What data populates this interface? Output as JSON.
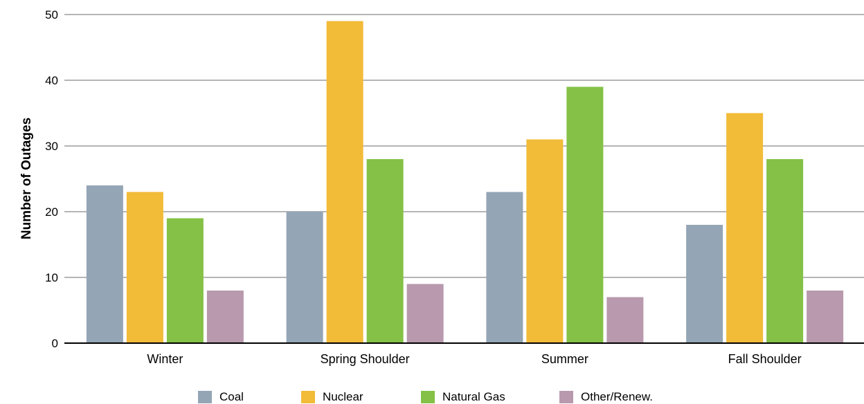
{
  "chart_data": {
    "type": "bar",
    "title": "",
    "xlabel": "",
    "ylabel": "Number of Outages",
    "ylim": [
      0,
      50
    ],
    "yticks": [
      0,
      10,
      20,
      30,
      40,
      50
    ],
    "grid": true,
    "legend_position": "bottom",
    "categories": [
      "Winter",
      "Spring Shoulder",
      "Summer",
      "Fall Shoulder"
    ],
    "series": [
      {
        "name": "Coal",
        "color": "#94a5b5",
        "values": [
          24,
          20,
          23,
          18
        ]
      },
      {
        "name": "Nuclear",
        "color": "#f2bb38",
        "values": [
          23,
          49,
          31,
          35
        ]
      },
      {
        "name": "Natural Gas",
        "color": "#84c146",
        "values": [
          19,
          28,
          39,
          28
        ]
      },
      {
        "name": "Other/Renew.",
        "color": "#b899ad",
        "values": [
          8,
          9,
          7,
          8
        ]
      }
    ]
  }
}
